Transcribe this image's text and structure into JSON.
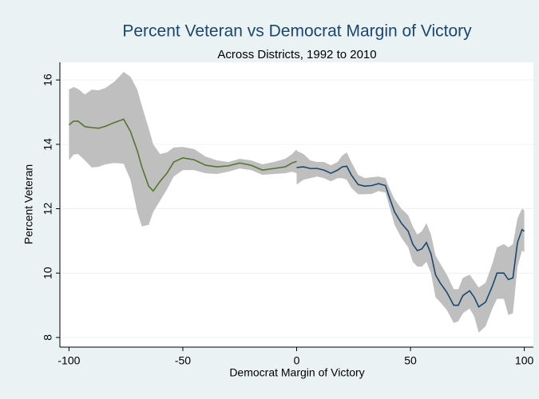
{
  "chart_data": {
    "type": "line",
    "title": "Percent Veteran vs Democrat Margin of Victory",
    "subtitle": "Across Districts, 1992 to 2010",
    "x_label": "Democrat Margin of Victory",
    "y_label": "Percent Veteran",
    "xlim": [
      -104,
      104
    ],
    "ylim": [
      7.7,
      16.55
    ],
    "xticks": [
      -100,
      -50,
      0,
      50,
      100
    ],
    "yticks": [
      8,
      10,
      12,
      14,
      16
    ],
    "grid": true,
    "band_color": "#bfbfbf",
    "series": [
      {
        "color": "#55752f",
        "x": [
          -100,
          -98,
          -96,
          -93,
          -90,
          -87,
          -84,
          -80,
          -76,
          -73,
          -70,
          -68,
          -65,
          -63,
          -60,
          -57,
          -54,
          -50,
          -45,
          -40,
          -35,
          -30,
          -25,
          -20,
          -15,
          -10,
          -5,
          -2,
          0
        ],
        "values": [
          14.6,
          14.72,
          14.72,
          14.55,
          14.52,
          14.5,
          14.56,
          14.68,
          14.78,
          14.4,
          13.8,
          13.3,
          12.7,
          12.55,
          12.85,
          13.1,
          13.45,
          13.58,
          13.52,
          13.35,
          13.3,
          13.33,
          13.42,
          13.35,
          13.2,
          13.25,
          13.3,
          13.42,
          13.47
        ],
        "upper": [
          15.7,
          15.78,
          15.72,
          15.55,
          15.7,
          15.68,
          15.75,
          15.95,
          16.25,
          16.1,
          15.7,
          15.2,
          14.5,
          14.0,
          13.7,
          13.75,
          13.9,
          13.92,
          13.85,
          13.62,
          13.5,
          13.45,
          13.55,
          13.5,
          13.38,
          13.45,
          13.55,
          13.7,
          13.85
        ],
        "lower": [
          13.5,
          13.68,
          13.7,
          13.5,
          13.28,
          13.3,
          13.38,
          13.42,
          13.4,
          12.9,
          11.9,
          11.45,
          11.5,
          11.9,
          12.25,
          12.6,
          13.0,
          13.2,
          13.2,
          13.1,
          13.08,
          13.15,
          13.25,
          13.2,
          13.05,
          13.08,
          13.1,
          13.15,
          13.1
        ]
      },
      {
        "color": "#1a476f",
        "x": [
          0,
          3,
          6,
          9,
          12,
          15,
          18,
          20,
          22,
          24,
          27,
          30,
          33,
          36,
          39,
          41,
          43,
          46,
          49,
          51,
          53,
          55,
          57,
          59,
          61,
          63,
          66,
          69,
          71,
          73,
          76,
          78,
          80,
          83,
          86,
          88,
          91,
          93,
          95,
          97,
          99,
          100
        ],
        "values": [
          13.28,
          13.3,
          13.25,
          13.25,
          13.2,
          13.1,
          13.2,
          13.3,
          13.32,
          13.05,
          12.75,
          12.7,
          12.72,
          12.78,
          12.72,
          12.3,
          11.9,
          11.55,
          11.3,
          10.9,
          10.7,
          10.75,
          10.95,
          10.6,
          9.95,
          9.7,
          9.4,
          9.0,
          9.0,
          9.3,
          9.45,
          9.25,
          8.95,
          9.1,
          9.6,
          10.0,
          10.0,
          9.8,
          9.85,
          10.95,
          11.35,
          11.3
        ],
        "upper": [
          13.8,
          13.7,
          13.5,
          13.45,
          13.45,
          13.35,
          13.45,
          13.65,
          13.75,
          13.45,
          13.05,
          12.95,
          12.98,
          13.0,
          12.95,
          12.6,
          12.3,
          12.0,
          11.8,
          11.45,
          11.2,
          11.3,
          11.55,
          11.2,
          10.55,
          10.3,
          9.95,
          9.5,
          9.5,
          9.85,
          9.95,
          9.75,
          9.55,
          9.7,
          10.3,
          10.8,
          10.9,
          10.8,
          10.9,
          11.7,
          12.0,
          11.95
        ],
        "lower": [
          12.75,
          12.9,
          12.95,
          13.0,
          12.95,
          12.85,
          12.95,
          12.95,
          12.9,
          12.65,
          12.45,
          12.45,
          12.46,
          12.55,
          12.5,
          12.0,
          11.5,
          11.1,
          10.8,
          10.35,
          10.2,
          10.2,
          10.35,
          10.0,
          9.25,
          9.1,
          8.85,
          8.45,
          8.5,
          8.75,
          8.9,
          8.65,
          8.15,
          8.35,
          8.9,
          9.2,
          9.2,
          8.7,
          8.75,
          10.2,
          10.7,
          10.65
        ]
      }
    ]
  }
}
